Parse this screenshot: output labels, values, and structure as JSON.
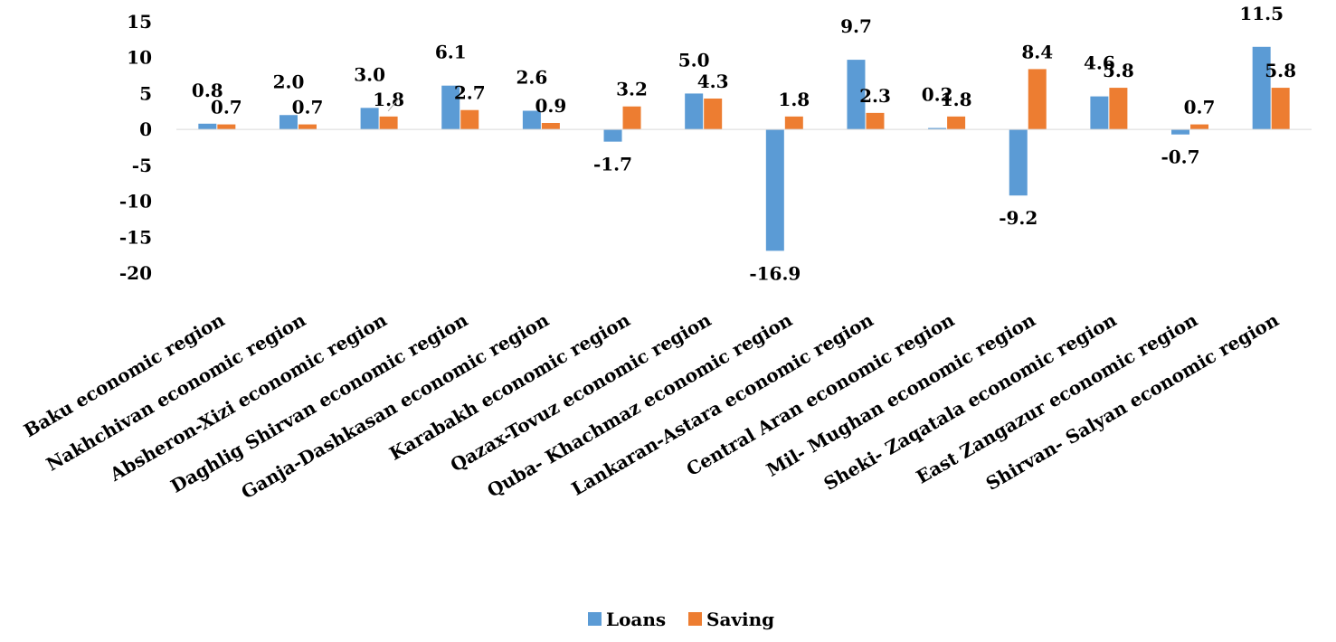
{
  "chart_data": {
    "type": "bar",
    "categories": [
      "Baku economic region",
      "Nakhchivan economic region",
      "Absheron-Xizi economic region",
      "Daghlig Shirvan economic region",
      "Ganja-Dashkasan economic region",
      "Karabakh economic region",
      "Qazax-Tovuz economic region",
      "Quba- Khachmaz economic region",
      "Lankaran-Astara economic region",
      "Central Aran economic region",
      "Mil- Mughan economic region",
      "Sheki- Zaqatala economic region",
      "East Zangazur economic region",
      "Shirvan- Salyan economic region"
    ],
    "series": [
      {
        "name": "Loans",
        "color": "#5B9BD5",
        "values": [
          0.8,
          2.0,
          3.0,
          6.1,
          2.6,
          -1.7,
          5.0,
          -16.9,
          9.7,
          0.2,
          -9.2,
          4.6,
          -0.7,
          11.5
        ],
        "labels": [
          "0.8",
          "2.0",
          "3.0",
          "6.1",
          "2.6",
          "-1.7",
          "5.0",
          "-16.9",
          "9.7",
          "0.2",
          "-9.2",
          "4.6",
          "-0.7",
          "11.5"
        ]
      },
      {
        "name": "Saving",
        "color": "#ED7D31",
        "values": [
          0.7,
          0.7,
          1.8,
          2.7,
          0.9,
          3.2,
          4.3,
          1.8,
          2.3,
          1.8,
          8.4,
          5.8,
          0.7,
          5.8
        ],
        "labels": [
          "0.7",
          "0.7",
          "1.8",
          "2.7",
          "0.9",
          "3.2",
          "4.3",
          "1.8",
          "2.3",
          "1.8",
          "8.4",
          "5.8",
          "0.7",
          "5.8"
        ]
      }
    ],
    "title": "",
    "xlabel": "",
    "ylabel": "",
    "ylim": [
      -20,
      15
    ],
    "yticks": [
      "15",
      "10",
      "5",
      "0",
      "-5",
      "-10",
      "-15",
      "-20"
    ],
    "ytick_values": [
      15,
      10,
      5,
      0,
      -5,
      -10,
      -15,
      -20
    ],
    "grid": false,
    "legend_position": "bottom-center"
  }
}
